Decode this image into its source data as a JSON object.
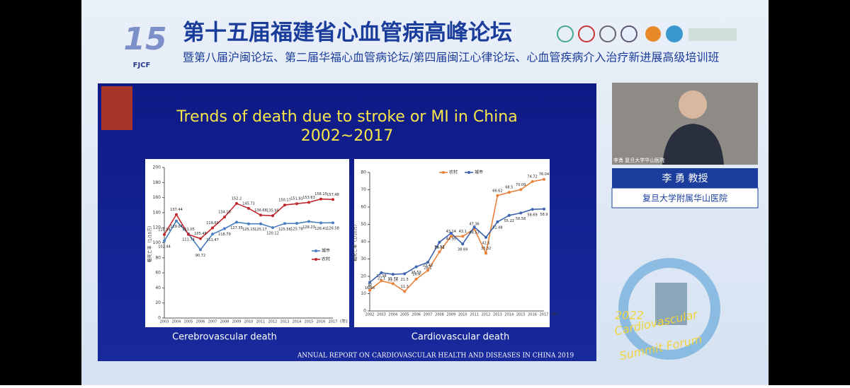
{
  "header": {
    "logo_number": "15",
    "logo_text": "FJCF",
    "title": "第十五届福建省心血管病高峰论坛",
    "subtitle": "暨第八届沪闽论坛、第二届华福心血管病论坛/第四届闽江心律论坛、心血管疾病介入治疗新进展高级培训班"
  },
  "slide": {
    "title_lines": [
      "Trends of death due to stroke or MI in China",
      "2002~2017"
    ],
    "captions": [
      "Cerebrovascular death",
      "Cardiovascular death"
    ],
    "footer": "ANNUAL REPORT ON CARDIOVASCULAR HEALTH AND DISEASES IN CHINA 2019"
  },
  "chart_data": [
    {
      "type": "line",
      "ylabel": "粗死亡率（1/10万）",
      "xlabel": "(年)",
      "legend": "lower right",
      "categories": [
        "2003",
        "2004",
        "2005",
        "2006",
        "2007",
        "2008",
        "2009",
        "2010",
        "2011",
        "2012",
        "2013",
        "2014",
        "2015",
        "2016",
        "2017"
      ],
      "ylim": [
        0,
        200
      ],
      "yticks": [
        0,
        20,
        40,
        60,
        80,
        100,
        120,
        140,
        160,
        180,
        200
      ],
      "series": [
        {
          "name": "城市",
          "color": "#4a7fc1",
          "values": [
            102.44,
            129.04,
            111.74,
            90.72,
            111.47,
            118.79,
            127.35,
            125.15,
            125.17,
            120.12,
            125.56,
            125.78,
            128.23,
            126.41,
            126.58
          ]
        },
        {
          "name": "农村",
          "color": "#c0282d",
          "values": [
            110.94,
            137.44,
            111.05,
            105.48,
            119.69,
            134.16,
            152.2,
            145.71,
            136.68,
            135.95,
            150.17,
            151.91,
            153.63,
            158.15,
            157.48
          ]
        }
      ]
    },
    {
      "type": "line",
      "ylabel": "粗死亡率（1/10万）",
      "xlabel": "(年)",
      "legend": "upper left",
      "categories": [
        "2002",
        "2003",
        "2004",
        "2005",
        "2006",
        "2007",
        "2008",
        "2009",
        "2010",
        "2011",
        "2012",
        "2013",
        "2014",
        "2015",
        "2016",
        "2017"
      ],
      "ylim": [
        0,
        80
      ],
      "yticks": [
        0,
        10,
        20,
        30,
        40,
        50,
        60,
        70,
        80
      ],
      "series": [
        {
          "name": "农村",
          "color": "#e8813a",
          "values": [
            12,
            17.38,
            15.77,
            11.3,
            18.4,
            23.42,
            34.12,
            43.14,
            43.1,
            47.36,
            33.32,
            66.62,
            68.5,
            70.09,
            74.72,
            76.04
          ]
        },
        {
          "name": "城市",
          "color": "#3c63b0",
          "values": [
            16.46,
            22.1,
            21.16,
            21.5,
            25.53,
            28.1,
            39.71,
            44.95,
            38.69,
            48.53,
            42.5,
            51.48,
            55.22,
            56.58,
            58.69,
            58.9
          ]
        }
      ]
    }
  ],
  "speaker": {
    "video_caption": "李勇 复旦大学华山医院",
    "name": "李 勇 教授",
    "affiliation": "复旦大学附属华山医院"
  },
  "forum_logo": {
    "year": "2022",
    "line1": "Cardiovascular",
    "line2": "Summit Forum"
  }
}
